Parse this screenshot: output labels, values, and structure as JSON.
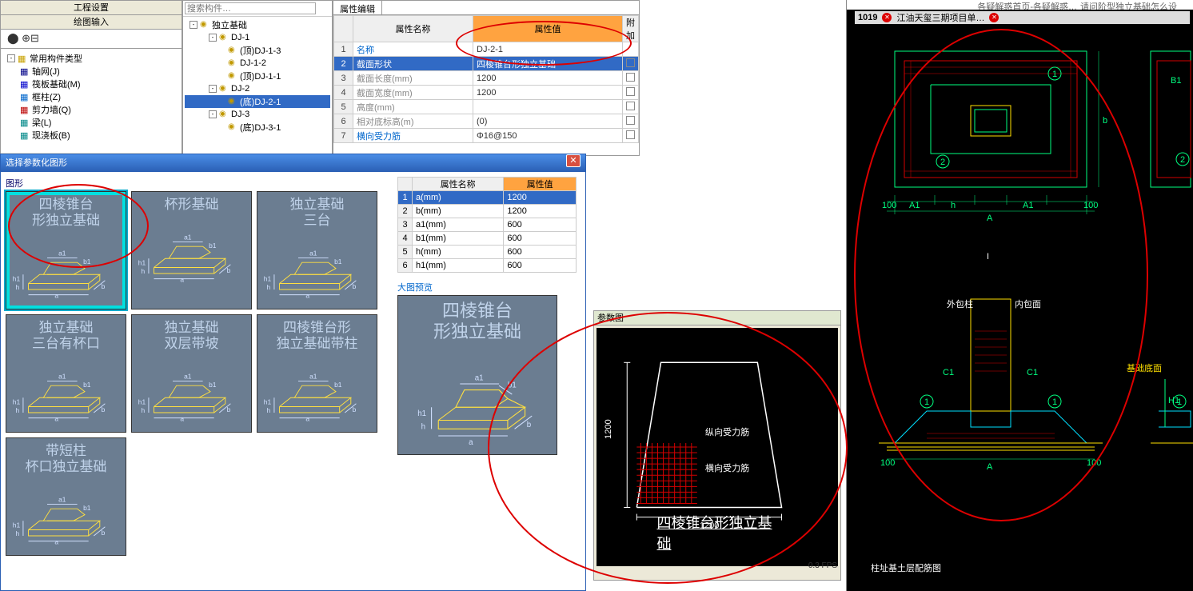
{
  "left_panel": {
    "tab1": "工程设置",
    "tab2": "绘图输入",
    "toolbar": "⬤ ⊕⊟",
    "tree": [
      {
        "icon": "folder",
        "label": "常用构件类型",
        "lvl": 1,
        "box": "-"
      },
      {
        "icon": "grid",
        "label": "轴网(J)",
        "lvl": 2
      },
      {
        "icon": "raft",
        "label": "筏板基础(M)",
        "lvl": 2
      },
      {
        "icon": "col",
        "label": "框柱(Z)",
        "lvl": 2
      },
      {
        "icon": "wall",
        "label": "剪力墙(Q)",
        "lvl": 2
      },
      {
        "icon": "beam",
        "label": "梁(L)",
        "lvl": 2
      },
      {
        "icon": "slab",
        "label": "现浇板(B)",
        "lvl": 2
      }
    ]
  },
  "mid_panel": {
    "search_placeholder": "搜索构件…",
    "tree": [
      {
        "lvl": 1,
        "box": "-",
        "icon": "found",
        "label": "独立基础"
      },
      {
        "lvl": 2,
        "box": "-",
        "icon": "unit",
        "label": "DJ-1"
      },
      {
        "lvl": 3,
        "icon": "unit",
        "label": "(顶)DJ-1-3"
      },
      {
        "lvl": 3,
        "icon": "unit",
        "label": "DJ-1-2"
      },
      {
        "lvl": 3,
        "icon": "unit",
        "label": "(顶)DJ-1-1"
      },
      {
        "lvl": 2,
        "box": "-",
        "icon": "unit",
        "label": "DJ-2"
      },
      {
        "lvl": 3,
        "icon": "unit",
        "label": "(底)DJ-2-1",
        "sel": true
      },
      {
        "lvl": 2,
        "box": "-",
        "icon": "unit",
        "label": "DJ-3"
      },
      {
        "lvl": 3,
        "icon": "unit",
        "label": "(底)DJ-3-1"
      }
    ]
  },
  "prop": {
    "tab": "属性编辑",
    "cols": {
      "name": "属性名称",
      "val": "属性值",
      "ext": "附加"
    },
    "rows": [
      {
        "n": "名称",
        "v": "DJ-2-1",
        "blue": true
      },
      {
        "n": "截面形状",
        "v": "四棱锥台形独立基础",
        "blue": true,
        "sel": true,
        "chk": true
      },
      {
        "n": "截面长度(mm)",
        "v": "1200",
        "gray": true,
        "chk": true
      },
      {
        "n": "截面宽度(mm)",
        "v": "1200",
        "gray": true,
        "chk": true
      },
      {
        "n": "高度(mm)",
        "v": "",
        "gray": true,
        "chk": true
      },
      {
        "n": "相对底标高(m)",
        "v": "(0)",
        "gray": true,
        "chk": true
      },
      {
        "n": "横向受力筋",
        "v": "Φ16@150",
        "blue": true,
        "chk": true
      }
    ]
  },
  "dialog": {
    "title": "选择参数化图形",
    "shapes_label": "图形",
    "shapes": [
      {
        "title": "四棱锥台\n形独立基础",
        "sel": true
      },
      {
        "title": "杯形基础"
      },
      {
        "title": "独立基础\n三台"
      },
      {
        "title": "独立基础\n三台有杯口"
      },
      {
        "title": "独立基础\n双层带坡"
      },
      {
        "title": "四棱锥台形\n独立基础带柱"
      },
      {
        "title": "带短柱\n杯口独立基础"
      }
    ],
    "sm_cols": {
      "name": "属性名称",
      "val": "属性值"
    },
    "sm_rows": [
      {
        "n": "a(mm)",
        "v": "1200",
        "sel": true
      },
      {
        "n": "b(mm)",
        "v": "1200"
      },
      {
        "n": "a1(mm)",
        "v": "600"
      },
      {
        "n": "b1(mm)",
        "v": "600"
      },
      {
        "n": "h(mm)",
        "v": "600"
      },
      {
        "n": "h1(mm)",
        "v": "600"
      }
    ],
    "preview_label": "大图预览",
    "preview_title": "四棱锥台\n形独立基础"
  },
  "param_fig": {
    "title": "参数图",
    "label": "四棱锥台形独立基础",
    "rebar_v": "纵向受力筋",
    "rebar_h": "横向受力筋",
    "dim_b": "1200",
    "dim_a": "1200"
  },
  "fps": "0.3 FPS",
  "cad": {
    "top_tabs": [
      "各疑解惑首页-各疑解惑…",
      "请问阶型独立基础怎么设"
    ],
    "tab_text": "江油天玺三期项目单…",
    "id": "1019",
    "dims": {
      "a1": "A1",
      "h": "h",
      "a": "A",
      "b": "b",
      "hundred": "100"
    },
    "labels": {
      "outer": "外包柱",
      "inner": "内包面",
      "base": "基础底面"
    },
    "bottom": "柱址基土层配筋图"
  },
  "colors": {
    "sel_blue": "#316ac5",
    "orange": "#ffa340",
    "dlg_blue": "#2a5fb4",
    "shape_bg": "#6b7d91",
    "shape_line": "#ffe040",
    "cad_red": "#d40000",
    "cad_green": "#00ff80",
    "cad_yellow": "#ffe000",
    "cad_cyan": "#00e0ff"
  }
}
